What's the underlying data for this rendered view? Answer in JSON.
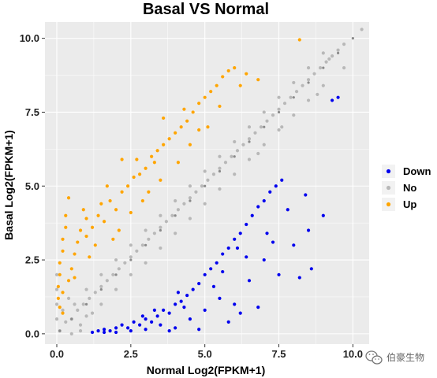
{
  "chart_data": {
    "type": "scatter",
    "title": "Basal VS Normal",
    "xlabel": "Normal  Log2(FPKM+1)",
    "ylabel": "Basal  Log2(FPKM+1)",
    "xlim": [
      -0.4,
      10.55
    ],
    "ylim": [
      -0.35,
      10.55
    ],
    "xticks": [
      0.0,
      2.5,
      5.0,
      7.5,
      10.0
    ],
    "xtick_labels": [
      "0.0",
      "2.5",
      "5.0",
      "7.5",
      "10.0"
    ],
    "yticks": [
      0.0,
      2.5,
      5.0,
      7.5,
      10.0
    ],
    "ytick_labels": [
      "0.0",
      "2.5",
      "5.0",
      "7.5",
      "10.0"
    ],
    "grid": true,
    "legend_position": "right",
    "series": [
      {
        "name": "Down",
        "color": "#0000ee",
        "points": [
          [
            1.2,
            0.05
          ],
          [
            1.4,
            0.1
          ],
          [
            1.6,
            0.15
          ],
          [
            1.8,
            0.1
          ],
          [
            2.0,
            0.2
          ],
          [
            2.2,
            0.3
          ],
          [
            2.4,
            0.2
          ],
          [
            2.6,
            0.4
          ],
          [
            2.8,
            0.3
          ],
          [
            3.0,
            0.5
          ],
          [
            3.2,
            0.4
          ],
          [
            3.4,
            0.6
          ],
          [
            3.6,
            0.8
          ],
          [
            3.8,
            0.7
          ],
          [
            4.0,
            1.0
          ],
          [
            4.2,
            1.1
          ],
          [
            4.4,
            1.3
          ],
          [
            4.6,
            1.5
          ],
          [
            4.8,
            1.7
          ],
          [
            5.0,
            2.0
          ],
          [
            5.2,
            2.2
          ],
          [
            5.4,
            2.4
          ],
          [
            5.6,
            2.7
          ],
          [
            5.8,
            2.9
          ],
          [
            6.0,
            3.2
          ],
          [
            6.2,
            3.4
          ],
          [
            6.4,
            3.7
          ],
          [
            6.6,
            4.0
          ],
          [
            6.8,
            4.3
          ],
          [
            7.0,
            4.5
          ],
          [
            7.2,
            4.8
          ],
          [
            7.4,
            5.0
          ],
          [
            7.6,
            5.2
          ],
          [
            2.5,
            0.1
          ],
          [
            3.0,
            0.15
          ],
          [
            3.5,
            0.3
          ],
          [
            4.0,
            0.2
          ],
          [
            4.5,
            0.5
          ],
          [
            5.0,
            0.8
          ],
          [
            5.5,
            1.2
          ],
          [
            6.0,
            1.0
          ],
          [
            6.5,
            1.8
          ],
          [
            7.0,
            2.5
          ],
          [
            7.5,
            2.0
          ],
          [
            8.0,
            3.0
          ],
          [
            8.5,
            3.5
          ],
          [
            9.0,
            4.0
          ],
          [
            9.5,
            8.0
          ],
          [
            9.3,
            7.9
          ],
          [
            8.2,
            1.9
          ],
          [
            8.6,
            2.2
          ],
          [
            6.2,
            0.7
          ],
          [
            6.8,
            0.9
          ],
          [
            5.8,
            0.4
          ],
          [
            4.8,
            0.15
          ],
          [
            3.8,
            0.1
          ],
          [
            2.0,
            0.05
          ],
          [
            1.6,
            0.05
          ],
          [
            4.3,
            0.9
          ],
          [
            5.3,
            1.6
          ],
          [
            6.4,
            2.6
          ],
          [
            7.1,
            3.4
          ],
          [
            7.8,
            4.2
          ],
          [
            8.4,
            4.7
          ],
          [
            3.3,
            0.8
          ],
          [
            2.9,
            0.6
          ],
          [
            4.1,
            1.4
          ],
          [
            5.6,
            2.1
          ],
          [
            6.1,
            2.9
          ],
          [
            7.3,
            3.1
          ]
        ]
      },
      {
        "name": "No",
        "color": "#b8b8b8",
        "points": [
          [
            0.1,
            0.1
          ],
          [
            0.3,
            0.4
          ],
          [
            0.5,
            0.5
          ],
          [
            0.7,
            0.8
          ],
          [
            0.9,
            1.0
          ],
          [
            1.1,
            1.2
          ],
          [
            1.3,
            1.4
          ],
          [
            1.5,
            1.6
          ],
          [
            1.7,
            1.8
          ],
          [
            1.9,
            2.0
          ],
          [
            2.1,
            2.2
          ],
          [
            2.3,
            2.4
          ],
          [
            2.5,
            2.6
          ],
          [
            2.7,
            2.8
          ],
          [
            2.9,
            3.0
          ],
          [
            3.1,
            3.2
          ],
          [
            3.3,
            3.4
          ],
          [
            3.5,
            3.6
          ],
          [
            3.7,
            3.8
          ],
          [
            3.9,
            4.0
          ],
          [
            4.1,
            4.2
          ],
          [
            4.3,
            4.4
          ],
          [
            4.5,
            4.6
          ],
          [
            4.7,
            4.8
          ],
          [
            4.9,
            5.0
          ],
          [
            5.1,
            5.2
          ],
          [
            5.3,
            5.4
          ],
          [
            5.5,
            5.6
          ],
          [
            5.7,
            5.8
          ],
          [
            5.9,
            6.0
          ],
          [
            6.1,
            6.2
          ],
          [
            6.3,
            6.4
          ],
          [
            6.5,
            6.6
          ],
          [
            6.7,
            6.8
          ],
          [
            6.9,
            7.0
          ],
          [
            7.1,
            7.2
          ],
          [
            7.3,
            7.4
          ],
          [
            7.5,
            7.6
          ],
          [
            7.7,
            7.8
          ],
          [
            7.9,
            8.0
          ],
          [
            8.1,
            8.2
          ],
          [
            8.3,
            8.4
          ],
          [
            8.5,
            8.6
          ],
          [
            8.7,
            8.8
          ],
          [
            8.9,
            9.0
          ],
          [
            9.1,
            9.2
          ],
          [
            9.3,
            9.4
          ],
          [
            9.5,
            9.6
          ],
          [
            9.7,
            9.8
          ],
          [
            10.3,
            10.3
          ],
          [
            1.0,
            0.6
          ],
          [
            1.5,
            1.0
          ],
          [
            2.0,
            1.5
          ],
          [
            2.5,
            2.0
          ],
          [
            3.0,
            2.4
          ],
          [
            3.5,
            2.9
          ],
          [
            4.0,
            3.4
          ],
          [
            4.5,
            3.9
          ],
          [
            5.0,
            4.4
          ],
          [
            5.5,
            4.9
          ],
          [
            6.0,
            5.4
          ],
          [
            6.5,
            5.9
          ],
          [
            7.0,
            6.4
          ],
          [
            7.5,
            6.9
          ],
          [
            8.0,
            7.4
          ],
          [
            8.5,
            7.9
          ],
          [
            9.0,
            8.4
          ],
          [
            0.6,
            1.0
          ],
          [
            1.0,
            1.5
          ],
          [
            1.5,
            2.0
          ],
          [
            2.0,
            2.5
          ],
          [
            2.5,
            3.0
          ],
          [
            3.0,
            3.5
          ],
          [
            3.5,
            4.0
          ],
          [
            4.0,
            4.5
          ],
          [
            4.5,
            5.0
          ],
          [
            5.0,
            5.5
          ],
          [
            5.5,
            6.0
          ],
          [
            6.0,
            6.5
          ],
          [
            6.5,
            7.0
          ],
          [
            7.0,
            7.5
          ],
          [
            7.5,
            8.0
          ],
          [
            8.0,
            8.5
          ],
          [
            8.5,
            9.0
          ],
          [
            9.0,
            9.5
          ],
          [
            0.2,
            0.8
          ],
          [
            0.4,
            1.2
          ],
          [
            0.8,
            0.3
          ],
          [
            1.2,
            0.7
          ],
          [
            0.0,
            0.5
          ],
          [
            0.0,
            1.0
          ],
          [
            0.0,
            1.5
          ],
          [
            0.0,
            2.0
          ],
          [
            0.5,
            0.0
          ],
          [
            0.8,
            0.1
          ],
          [
            9.7,
            9.0
          ],
          [
            9.2,
            9.3
          ],
          [
            8.8,
            8.1
          ],
          [
            7.6,
            7.0
          ],
          [
            6.8,
            6.1
          ]
        ]
      },
      {
        "name": "Up",
        "color": "#ffa500",
        "points": [
          [
            0.05,
            1.2
          ],
          [
            0.05,
            1.6
          ],
          [
            0.1,
            2.0
          ],
          [
            0.1,
            2.4
          ],
          [
            0.2,
            2.8
          ],
          [
            0.2,
            3.2
          ],
          [
            0.3,
            3.6
          ],
          [
            0.3,
            4.0
          ],
          [
            0.5,
            2.2
          ],
          [
            0.6,
            2.7
          ],
          [
            0.7,
            3.1
          ],
          [
            0.8,
            3.5
          ],
          [
            1.0,
            3.3
          ],
          [
            1.0,
            3.9
          ],
          [
            1.2,
            3.6
          ],
          [
            1.4,
            4.0
          ],
          [
            1.5,
            4.4
          ],
          [
            1.6,
            3.8
          ],
          [
            1.8,
            4.5
          ],
          [
            2.0,
            4.2
          ],
          [
            2.2,
            4.8
          ],
          [
            2.4,
            5.0
          ],
          [
            2.6,
            5.3
          ],
          [
            2.8,
            5.4
          ],
          [
            3.0,
            5.6
          ],
          [
            3.2,
            6.0
          ],
          [
            3.4,
            6.2
          ],
          [
            3.6,
            6.4
          ],
          [
            3.8,
            6.6
          ],
          [
            4.0,
            6.8
          ],
          [
            4.2,
            7.0
          ],
          [
            4.4,
            7.2
          ],
          [
            4.6,
            7.5
          ],
          [
            4.8,
            7.8
          ],
          [
            5.0,
            8.0
          ],
          [
            5.2,
            8.2
          ],
          [
            5.4,
            8.4
          ],
          [
            5.6,
            8.7
          ],
          [
            5.8,
            8.9
          ],
          [
            6.0,
            9.0
          ],
          [
            6.2,
            8.4
          ],
          [
            6.4,
            8.8
          ],
          [
            6.8,
            8.6
          ],
          [
            8.2,
            9.95
          ],
          [
            0.1,
            0.9
          ],
          [
            0.2,
            1.4
          ],
          [
            0.4,
            1.8
          ],
          [
            0.6,
            1.9
          ],
          [
            1.1,
            2.6
          ],
          [
            1.3,
            3.0
          ],
          [
            2.1,
            3.5
          ],
          [
            2.5,
            4.1
          ],
          [
            3.1,
            4.8
          ],
          [
            3.5,
            5.2
          ],
          [
            4.1,
            5.8
          ],
          [
            4.5,
            6.4
          ],
          [
            5.1,
            7.0
          ],
          [
            2.2,
            5.9
          ],
          [
            1.7,
            5.0
          ],
          [
            3.6,
            7.3
          ],
          [
            4.3,
            7.6
          ],
          [
            0.4,
            4.6
          ],
          [
            0.9,
            4.2
          ],
          [
            2.7,
            5.9
          ],
          [
            3.3,
            5.8
          ],
          [
            4.8,
            6.9
          ],
          [
            5.5,
            7.7
          ],
          [
            0.2,
            0.7
          ],
          [
            1.9,
            3.2
          ],
          [
            2.9,
            4.5
          ]
        ]
      }
    ],
    "trend_line": {
      "color": "#8a8a8a",
      "points": [
        [
          0.1,
          0.1
        ],
        [
          0.5,
          0.5
        ],
        [
          1.0,
          1.0
        ],
        [
          1.5,
          1.5
        ],
        [
          2.0,
          2.0
        ],
        [
          2.5,
          2.5
        ],
        [
          3.0,
          3.0
        ],
        [
          3.5,
          3.5
        ],
        [
          4.0,
          4.0
        ],
        [
          4.5,
          4.5
        ],
        [
          5.0,
          5.0
        ],
        [
          5.5,
          5.5
        ],
        [
          6.0,
          6.0
        ],
        [
          6.5,
          6.5
        ],
        [
          7.0,
          7.0
        ],
        [
          7.5,
          7.5
        ],
        [
          8.0,
          8.0
        ],
        [
          8.5,
          8.5
        ],
        [
          9.0,
          9.0
        ],
        [
          9.5,
          9.5
        ],
        [
          10.0,
          10.0
        ]
      ]
    }
  },
  "watermark": {
    "text": "伯豪生物",
    "icon": "wechat-icon"
  },
  "colors": {
    "panel_bg": "#ebebeb",
    "grid": "#ffffff"
  }
}
